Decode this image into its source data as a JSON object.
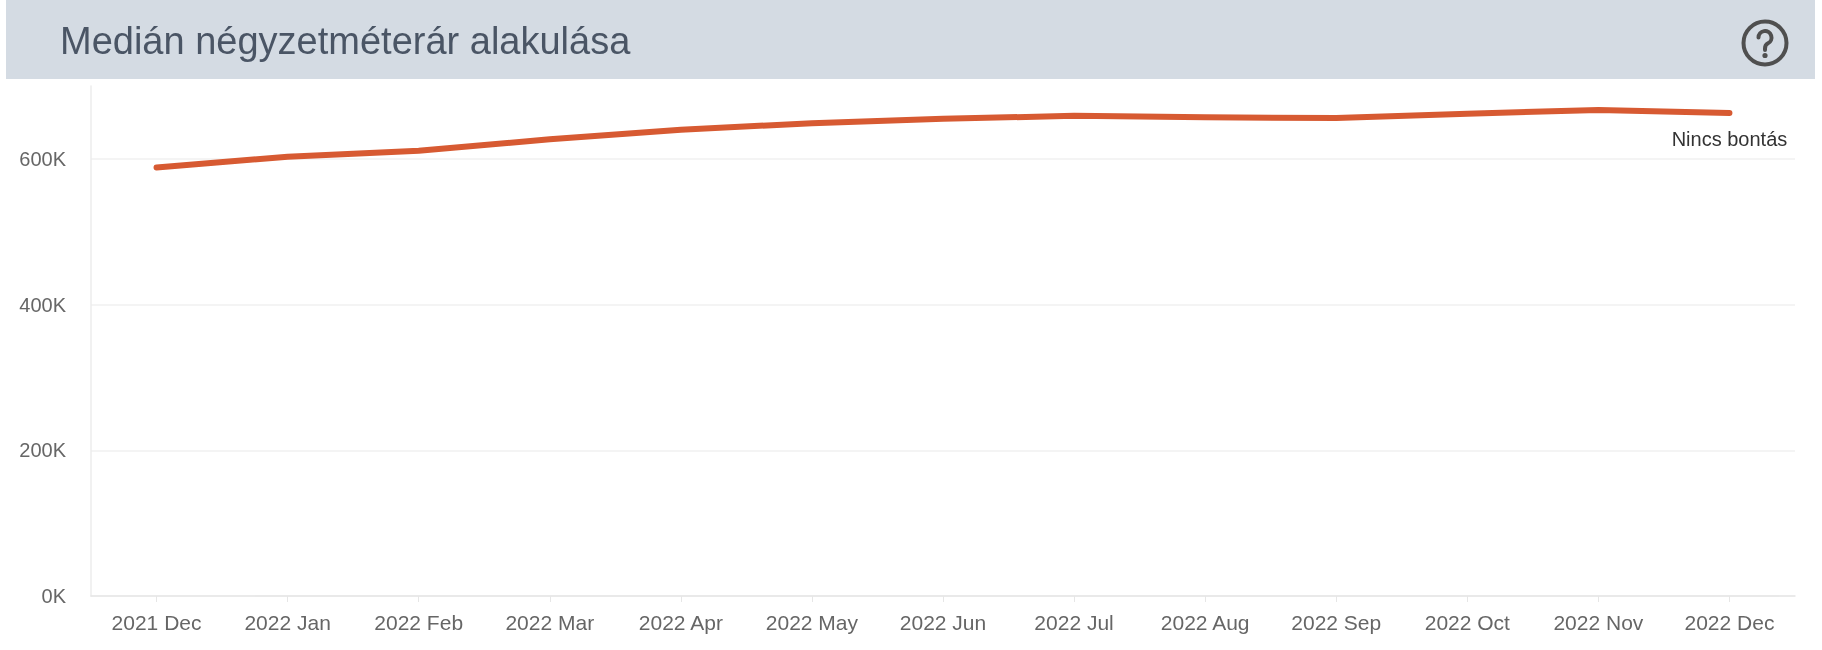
{
  "chart_data": {
    "type": "line",
    "title": "Medián négyzetméterár alakulása",
    "categories": [
      "2021 Dec",
      "2022 Jan",
      "2022 Feb",
      "2022 Mar",
      "2022 Apr",
      "2022 May",
      "2022 Jun",
      "2022 Jul",
      "2022 Aug",
      "2022 Sep",
      "2022 Oct",
      "2022 Nov",
      "2022 Dec"
    ],
    "series": [
      {
        "name": "Nincs bontás",
        "color": "#d75a32",
        "values": [
          588000,
          603000,
          611000,
          627000,
          640000,
          649000,
          655000,
          659000,
          657000,
          656000,
          662000,
          667000,
          663000
        ]
      }
    ],
    "ylim": [
      0,
      700000
    ],
    "yticks": [
      {
        "value": 0,
        "label": "0K"
      },
      {
        "value": 200000,
        "label": "200K"
      },
      {
        "value": 400000,
        "label": "400K"
      },
      {
        "value": 600000,
        "label": "600K"
      }
    ],
    "grid": "y",
    "marker": "none",
    "line_style": "solid"
  }
}
